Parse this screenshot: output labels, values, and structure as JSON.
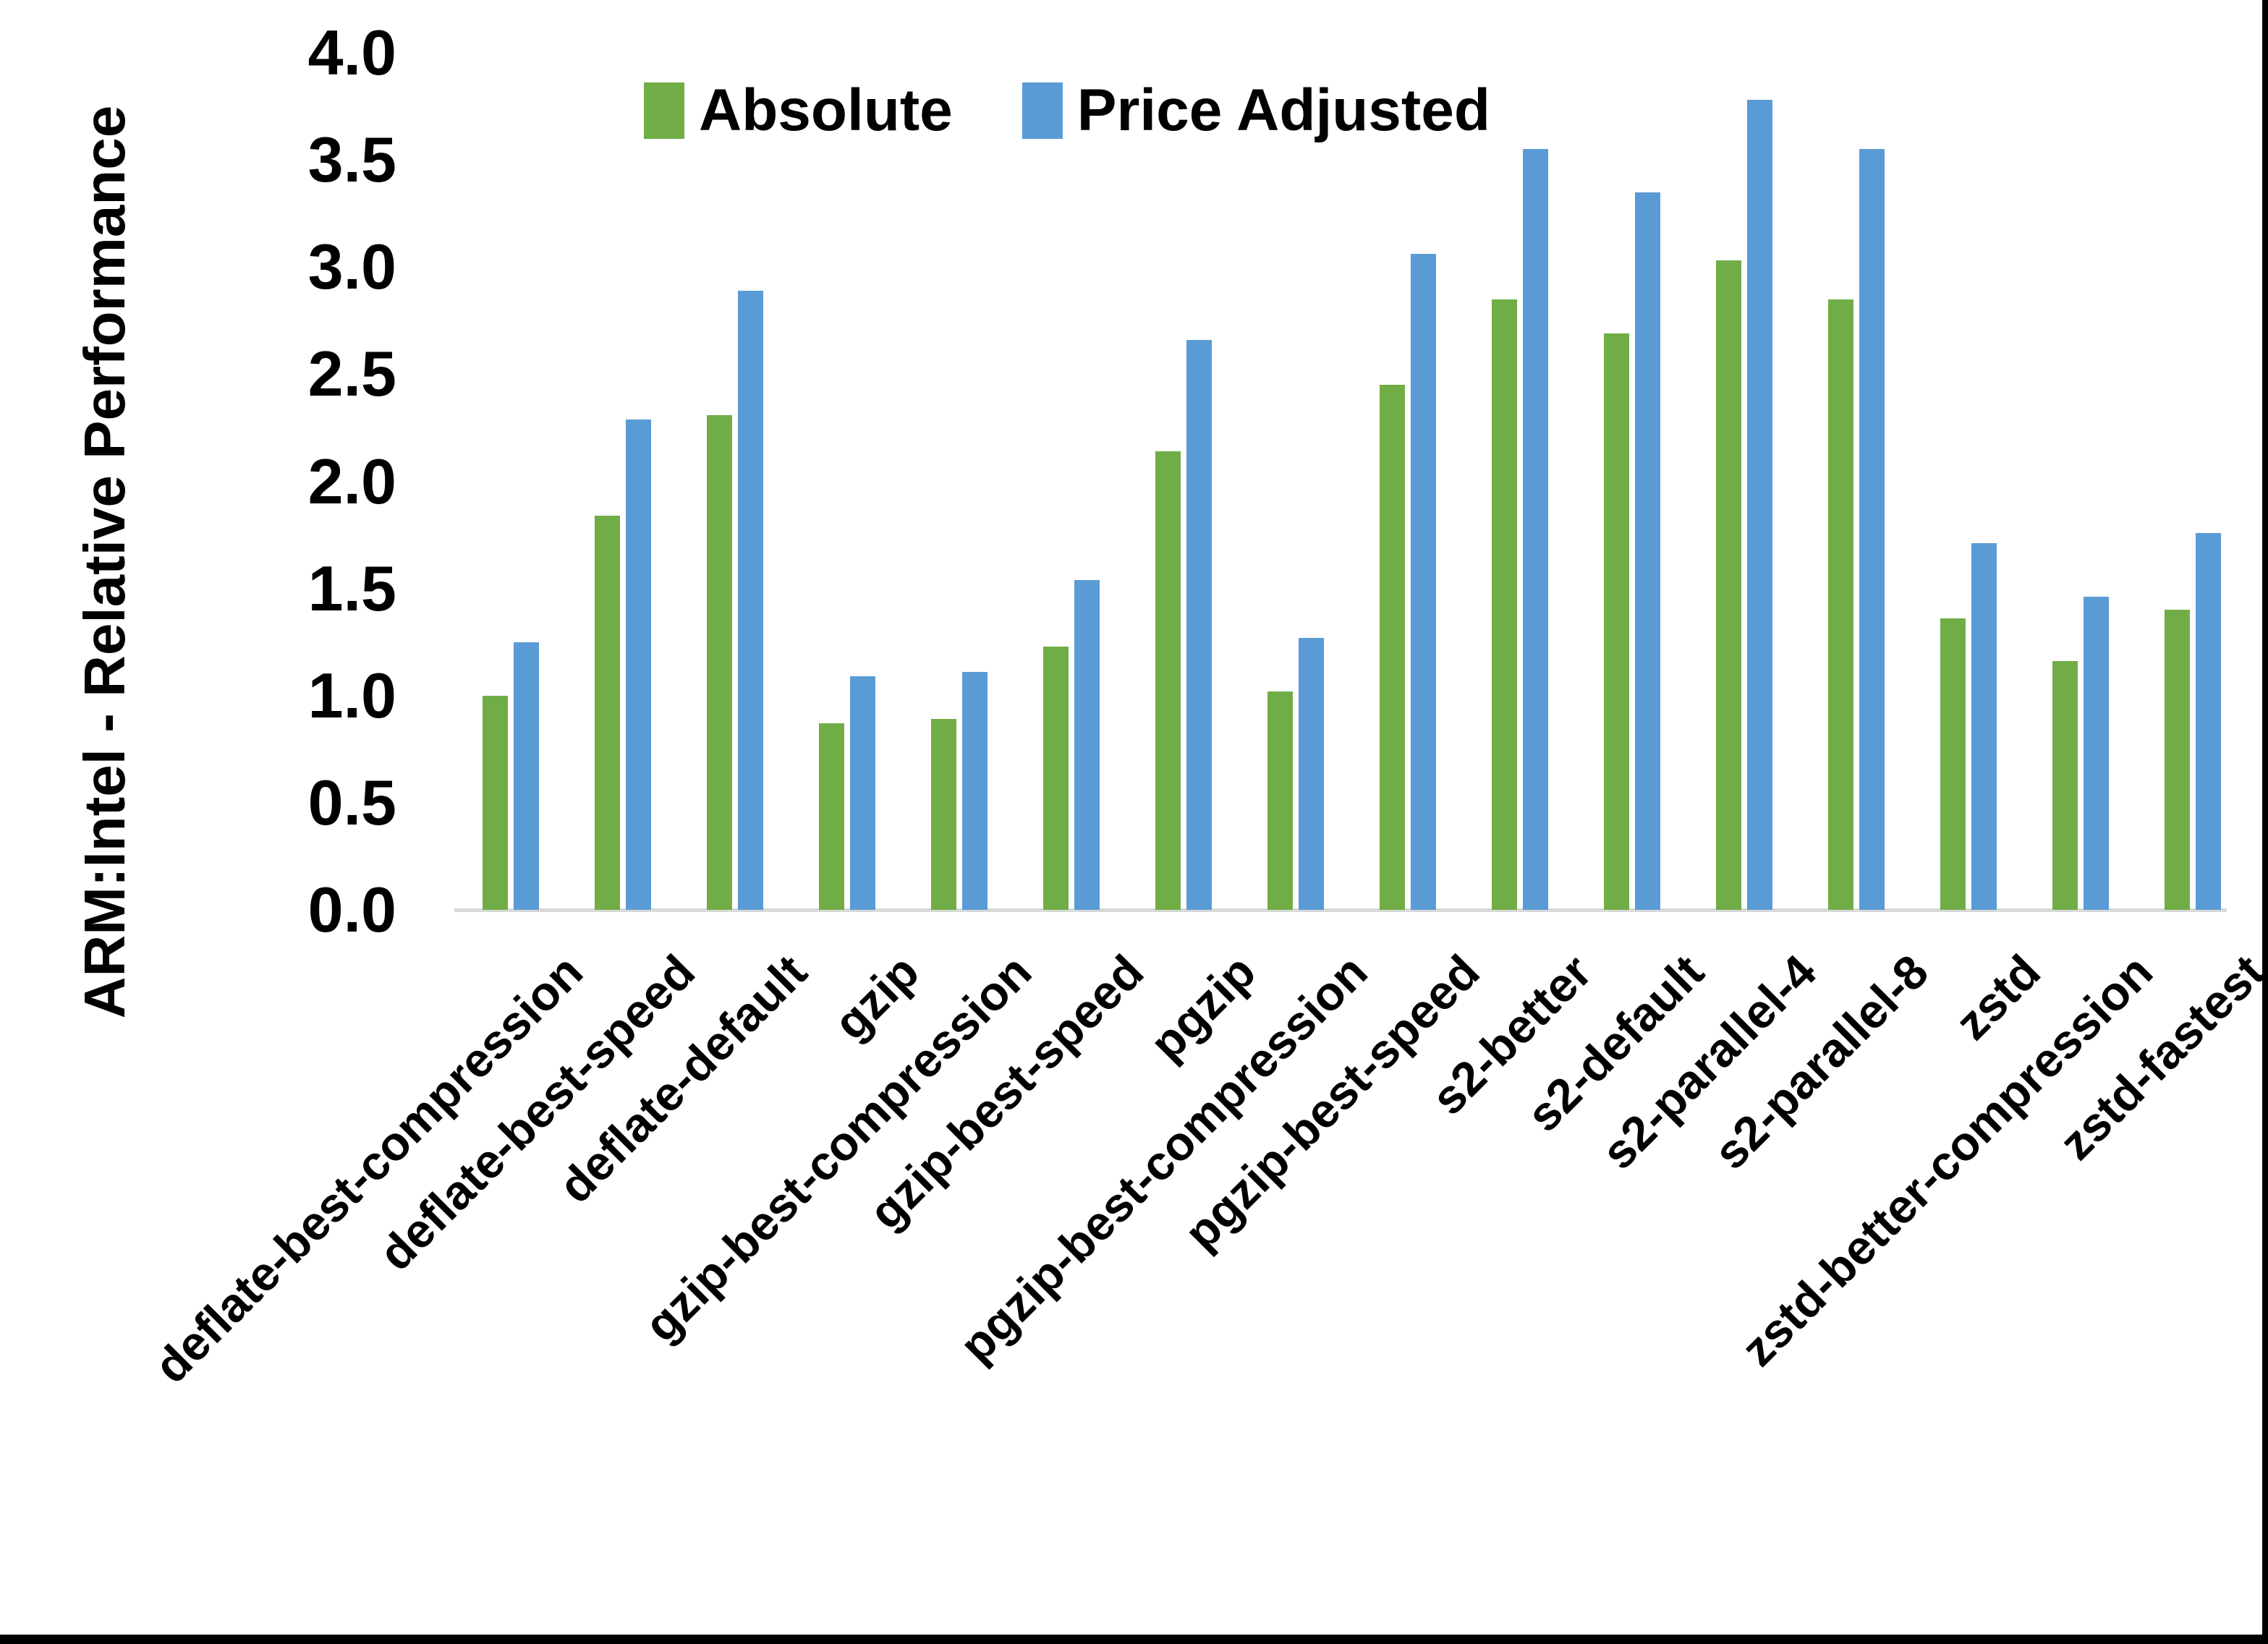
{
  "chart_data": {
    "type": "bar",
    "title": "",
    "xlabel": "",
    "ylabel": "ARM:Intel - Relative Performance",
    "ylim": [
      0.0,
      4.0
    ],
    "ytick_step": 0.5,
    "ytick_labels": [
      "4.0",
      "3.5",
      "3.0",
      "2.5",
      "2.0",
      "1.5",
      "1.0",
      "0.5",
      "0.0"
    ],
    "grid": false,
    "legend_position": "top-center",
    "categories": [
      "deflate-best-compression",
      "deflate-best-speed",
      "deflate-default",
      "gzip",
      "gzip-best-compression",
      "gzip-best-speed",
      "pgzip",
      "pgzip-best-compression",
      "pgzip-best-speed",
      "s2-better",
      "s2-default",
      "s2-parallel-4",
      "s2-parallel-8",
      "zstd",
      "zstd-better-compression",
      "zstd-fastest"
    ],
    "series": [
      {
        "name": "Absolute",
        "color": "#70AD47",
        "values": [
          1.0,
          1.84,
          2.31,
          0.87,
          0.89,
          1.23,
          2.14,
          1.02,
          2.45,
          2.85,
          2.69,
          3.03,
          2.85,
          1.36,
          1.16,
          1.4
        ]
      },
      {
        "name": "Price Adjusted",
        "color": "#5B9BD5",
        "values": [
          1.25,
          2.29,
          2.89,
          1.09,
          1.11,
          1.54,
          2.66,
          1.27,
          3.06,
          3.55,
          3.35,
          3.78,
          3.55,
          1.71,
          1.46,
          1.76
        ]
      }
    ]
  },
  "colors": {
    "background": "#FFFFFF",
    "axis_line": "#D9D9D9",
    "text": "#000000",
    "frame_border": "#000000"
  }
}
